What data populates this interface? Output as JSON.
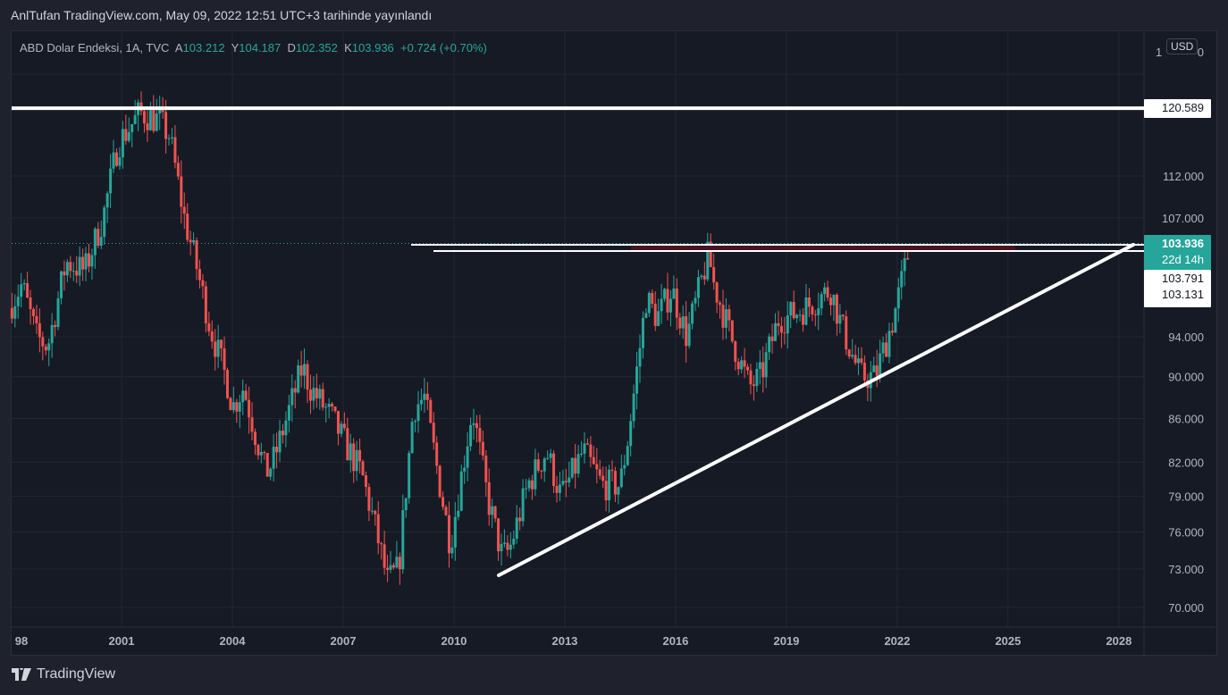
{
  "header": {
    "published": "AnlTufan TradingView.com, May 09, 2022 12:51 UTC+3 tarihinde yayınlandı"
  },
  "legend": {
    "symbol": "ABD Dolar Endeksi, 1A, TVC",
    "o_label": "A",
    "o": "103.212",
    "h_label": "Y",
    "h": "104.187",
    "l_label": "D",
    "l": "102.352",
    "c_label": "K",
    "c": "103.936",
    "change": "+0.724 (+0.70%)"
  },
  "currency": "USD",
  "price_labels": {
    "resistance": "120.589",
    "last": "103.936",
    "countdown": "22d 14h",
    "level1": "103.791",
    "level2": "103.131",
    "top_partial": "1",
    "top_partial_end": "0"
  },
  "brand": "TradingView",
  "colors": {
    "up": "#26a69a",
    "down": "#ef5350",
    "bg": "#161a25",
    "grid": "#232733",
    "drawing": "#ffffff"
  },
  "chart_data": {
    "type": "candlestick",
    "title": "ABD Dolar Endeksi, 1A, TVC",
    "scale": "log",
    "ylim": [
      69,
      126
    ],
    "xlim": [
      1997.95,
      2028.6
    ],
    "y_ticks": [
      "70.000",
      "73.000",
      "76.000",
      "79.000",
      "82.000",
      "86.000",
      "90.000",
      "94.000",
      "107.000",
      "112.000"
    ],
    "y_tick_values": [
      70,
      73,
      76,
      79,
      82,
      86,
      90,
      94,
      107,
      112
    ],
    "x_ticks": [
      "98",
      "2001",
      "2004",
      "2007",
      "2010",
      "2013",
      "2016",
      "2019",
      "2022",
      "2025",
      "2028"
    ],
    "x_tick_values": [
      1998,
      2001,
      2004,
      2007,
      2010,
      2013,
      2016,
      2019,
      2022,
      2025,
      2028
    ],
    "close_anchors": [
      [
        1997.95,
        97
      ],
      [
        1998.3,
        99.5
      ],
      [
        1998.7,
        94
      ],
      [
        1999.0,
        93
      ],
      [
        1999.5,
        102
      ],
      [
        2000.0,
        101
      ],
      [
        2000.5,
        107
      ],
      [
        2000.9,
        116
      ],
      [
        2001.2,
        118
      ],
      [
        2001.5,
        120
      ],
      [
        2002.0,
        119
      ],
      [
        2002.3,
        117
      ],
      [
        2002.7,
        107
      ],
      [
        2003.0,
        102
      ],
      [
        2003.4,
        95
      ],
      [
        2003.9,
        89
      ],
      [
        2004.0,
        87
      ],
      [
        2004.3,
        89
      ],
      [
        2004.9,
        81
      ],
      [
        2005.1,
        82
      ],
      [
        2005.9,
        91
      ],
      [
        2006.1,
        89
      ],
      [
        2006.7,
        86
      ],
      [
        2007.0,
        84
      ],
      [
        2007.5,
        81
      ],
      [
        2007.9,
        76
      ],
      [
        2008.2,
        72
      ],
      [
        2008.5,
        73
      ],
      [
        2008.9,
        87
      ],
      [
        2009.2,
        88
      ],
      [
        2009.9,
        75
      ],
      [
        2010.5,
        87
      ],
      [
        2010.9,
        79
      ],
      [
        2011.3,
        74
      ],
      [
        2011.5,
        74.5
      ],
      [
        2012.0,
        80
      ],
      [
        2012.5,
        83
      ],
      [
        2012.9,
        79
      ],
      [
        2013.5,
        83
      ],
      [
        2014.0,
        80
      ],
      [
        2014.5,
        80
      ],
      [
        2014.7,
        84
      ],
      [
        2015.0,
        92
      ],
      [
        2015.2,
        98
      ],
      [
        2015.5,
        96
      ],
      [
        2015.9,
        99
      ],
      [
        2016.3,
        94
      ],
      [
        2016.9,
        103
      ],
      [
        2017.0,
        100
      ],
      [
        2017.5,
        94
      ],
      [
        2018.0,
        89
      ],
      [
        2018.3,
        90
      ],
      [
        2018.8,
        96
      ],
      [
        2019.0,
        96
      ],
      [
        2019.5,
        97
      ],
      [
        2020.2,
        99
      ],
      [
        2020.5,
        95
      ],
      [
        2021.0,
        90
      ],
      [
        2021.4,
        90
      ],
      [
        2021.9,
        96
      ],
      [
        2022.35,
        103.936
      ]
    ],
    "drawings": {
      "resistance": 120.589,
      "horizontal_levels": [
        103.791,
        103.131
      ],
      "trendline": [
        [
          2011.3,
          73.0
        ],
        [
          2028.1,
          103.9
        ]
      ]
    }
  }
}
